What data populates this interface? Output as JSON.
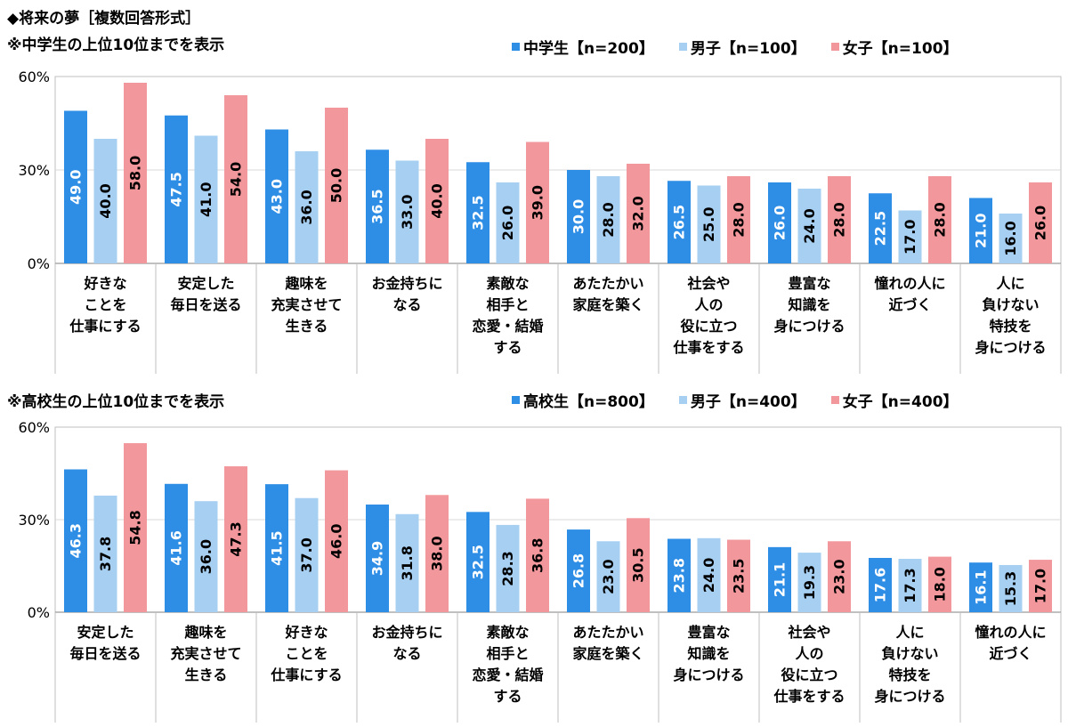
{
  "title": "◆将来の夢［複数回答形式］",
  "colors": {
    "total": "#2E8DE5",
    "male": "#A6CFF2",
    "female": "#F2989C"
  },
  "charts": [
    {
      "subtitle": "※中学生の上位10位までを表示",
      "legend": [
        "中学生【n=200】",
        "男子【n=100】",
        "女子【n=100】"
      ]
    },
    {
      "subtitle": "※高校生の上位10位までを表示",
      "legend": [
        "高校生【n=800】",
        "男子【n=400】",
        "女子【n=400】"
      ]
    }
  ],
  "chart_data": [
    {
      "type": "bar",
      "categories": [
        [
          "好きな",
          "ことを",
          "仕事にする"
        ],
        [
          "安定した",
          "毎日を送る"
        ],
        [
          "趣味を",
          "充実させて",
          "生きる"
        ],
        [
          "お金持ちに",
          "なる"
        ],
        [
          "素敵な",
          "相手と",
          "恋愛・結婚",
          "する"
        ],
        [
          "あたたかい",
          "家庭を築く"
        ],
        [
          "社会や",
          "人の",
          "役に立つ",
          "仕事をする"
        ],
        [
          "豊富な",
          "知識を",
          "身につける"
        ],
        [
          "憧れの人に",
          "近づく"
        ],
        [
          "人に",
          "負けない",
          "特技を",
          "身につける"
        ]
      ],
      "series": [
        {
          "name": "中学生【n=200】",
          "values": [
            49.0,
            47.5,
            43.0,
            36.5,
            32.5,
            30.0,
            26.5,
            26.0,
            22.5,
            21.0
          ]
        },
        {
          "name": "男子【n=100】",
          "values": [
            40.0,
            41.0,
            36.0,
            33.0,
            26.0,
            28.0,
            25.0,
            24.0,
            17.0,
            16.0
          ]
        },
        {
          "name": "女子【n=100】",
          "values": [
            58.0,
            54.0,
            50.0,
            40.0,
            39.0,
            32.0,
            28.0,
            28.0,
            28.0,
            26.0
          ]
        }
      ],
      "yticks": [
        "0%",
        "30%",
        "60%"
      ],
      "ylim": [
        0,
        60
      ]
    },
    {
      "type": "bar",
      "categories": [
        [
          "安定した",
          "毎日を送る"
        ],
        [
          "趣味を",
          "充実させて",
          "生きる"
        ],
        [
          "好きな",
          "ことを",
          "仕事にする"
        ],
        [
          "お金持ちに",
          "なる"
        ],
        [
          "素敵な",
          "相手と",
          "恋愛・結婚",
          "する"
        ],
        [
          "あたたかい",
          "家庭を築く"
        ],
        [
          "豊富な",
          "知識を",
          "身につける"
        ],
        [
          "社会や",
          "人の",
          "役に立つ",
          "仕事をする"
        ],
        [
          "人に",
          "負けない",
          "特技を",
          "身につける"
        ],
        [
          "憧れの人に",
          "近づく"
        ]
      ],
      "series": [
        {
          "name": "高校生【n=800】",
          "values": [
            46.3,
            41.6,
            41.5,
            34.9,
            32.5,
            26.8,
            23.8,
            21.1,
            17.6,
            16.1
          ]
        },
        {
          "name": "男子【n=400】",
          "values": [
            37.8,
            36.0,
            37.0,
            31.8,
            28.3,
            23.0,
            24.0,
            19.3,
            17.3,
            15.3
          ]
        },
        {
          "name": "女子【n=400】",
          "values": [
            54.8,
            47.3,
            46.0,
            38.0,
            36.8,
            30.5,
            23.5,
            23.0,
            18.0,
            17.0
          ]
        }
      ],
      "yticks": [
        "0%",
        "30%",
        "60%"
      ],
      "ylim": [
        0,
        60
      ]
    }
  ]
}
